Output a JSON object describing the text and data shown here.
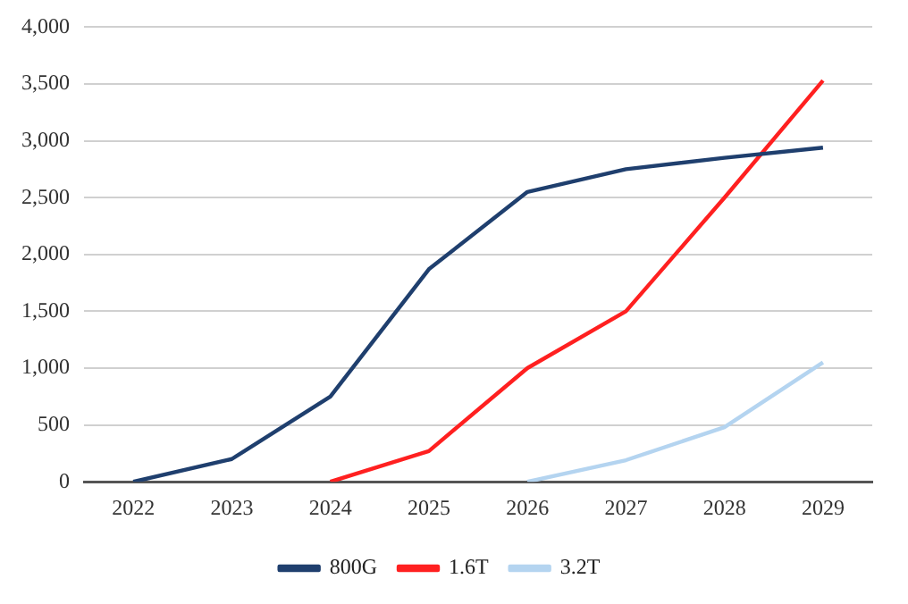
{
  "chart_data": {
    "type": "line",
    "categories": [
      "2022",
      "2023",
      "2024",
      "2025",
      "2026",
      "2027",
      "2028",
      "2029"
    ],
    "series": [
      {
        "name": "800G",
        "color": "#1f3f6e",
        "values": [
          0,
          200,
          750,
          1870,
          2550,
          2750,
          2850,
          2940
        ]
      },
      {
        "name": "1.6T",
        "color": "#ff2020",
        "values": [
          null,
          null,
          0,
          270,
          1000,
          1500,
          2500,
          3530
        ]
      },
      {
        "name": "3.2T",
        "color": "#b4d4f0",
        "values": [
          null,
          null,
          null,
          null,
          0,
          190,
          480,
          1050
        ]
      }
    ],
    "ylim": [
      0,
      4000
    ],
    "yticks": [
      0,
      500,
      {
        "value": 1000,
        "label": "1,000"
      },
      {
        "value": 1500,
        "label": "1,500"
      },
      {
        "value": 2000,
        "label": "2,000"
      },
      {
        "value": 2500,
        "label": "2,500"
      },
      {
        "value": 3000,
        "label": "3,000"
      },
      {
        "value": 3500,
        "label": "3,500"
      },
      {
        "value": 4000,
        "label": "4,000"
      }
    ],
    "grid": "y",
    "legend": "bottom",
    "marker": "none",
    "line_style": "solid"
  }
}
